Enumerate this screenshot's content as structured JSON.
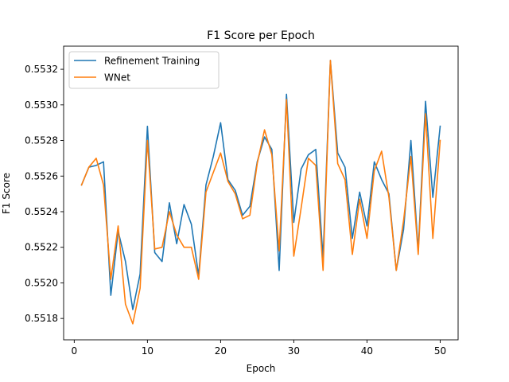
{
  "chart_data": {
    "type": "line",
    "title": "F1 Score per Epoch",
    "xlabel": "Epoch",
    "ylabel": "F1 Score",
    "xlim": [
      -1.45,
      52.45
    ],
    "ylim": [
      0.55168,
      0.55333
    ],
    "xticks": [
      0,
      10,
      20,
      30,
      40,
      50
    ],
    "yticks": [
      0.5518,
      0.552,
      0.5522,
      0.5524,
      0.5526,
      0.5528,
      0.553,
      0.5532
    ],
    "ytick_labels": [
      "0.5518",
      "0.5520",
      "0.5522",
      "0.5524",
      "0.5526",
      "0.5528",
      "0.5530",
      "0.5532"
    ],
    "grid": false,
    "legend_position": "top-left",
    "x": [
      1,
      2,
      3,
      4,
      5,
      6,
      7,
      8,
      9,
      10,
      11,
      12,
      13,
      14,
      15,
      16,
      17,
      18,
      19,
      20,
      21,
      22,
      23,
      24,
      25,
      26,
      27,
      28,
      29,
      30,
      31,
      32,
      33,
      34,
      35,
      36,
      37,
      38,
      39,
      40,
      41,
      42,
      43,
      44,
      45,
      46,
      47,
      48,
      49,
      50
    ],
    "series": [
      {
        "name": "Refinement Training",
        "color": "#1f77b4",
        "values": [
          0.55255,
          0.55265,
          0.55266,
          0.55268,
          0.55193,
          0.55229,
          0.55212,
          0.55185,
          0.55205,
          0.55288,
          0.55217,
          0.55212,
          0.55245,
          0.55222,
          0.55244,
          0.55233,
          0.55204,
          0.55255,
          0.55271,
          0.5529,
          0.55258,
          0.55252,
          0.55238,
          0.55243,
          0.55268,
          0.55282,
          0.55275,
          0.55207,
          0.55306,
          0.55234,
          0.55264,
          0.55272,
          0.55275,
          0.55214,
          0.55325,
          0.55273,
          0.55265,
          0.55225,
          0.55251,
          0.55232,
          0.55268,
          0.55258,
          0.5525,
          0.55207,
          0.5523,
          0.5528,
          0.55218,
          0.55302,
          0.55248,
          0.55288
        ]
      },
      {
        "name": "WNet",
        "color": "#ff7f0e",
        "values": [
          0.55255,
          0.55265,
          0.5527,
          0.55255,
          0.55202,
          0.55232,
          0.55188,
          0.55177,
          0.55197,
          0.5528,
          0.55219,
          0.5522,
          0.5524,
          0.55227,
          0.5522,
          0.5522,
          0.55202,
          0.55251,
          0.55262,
          0.55273,
          0.55257,
          0.5525,
          0.55236,
          0.55238,
          0.55267,
          0.55286,
          0.55272,
          0.55218,
          0.55303,
          0.55215,
          0.55242,
          0.5527,
          0.55266,
          0.55207,
          0.55325,
          0.55267,
          0.55258,
          0.55216,
          0.55247,
          0.55225,
          0.55263,
          0.55274,
          0.55248,
          0.55207,
          0.55235,
          0.55271,
          0.55216,
          0.55295,
          0.55225,
          0.5528
        ]
      }
    ]
  }
}
